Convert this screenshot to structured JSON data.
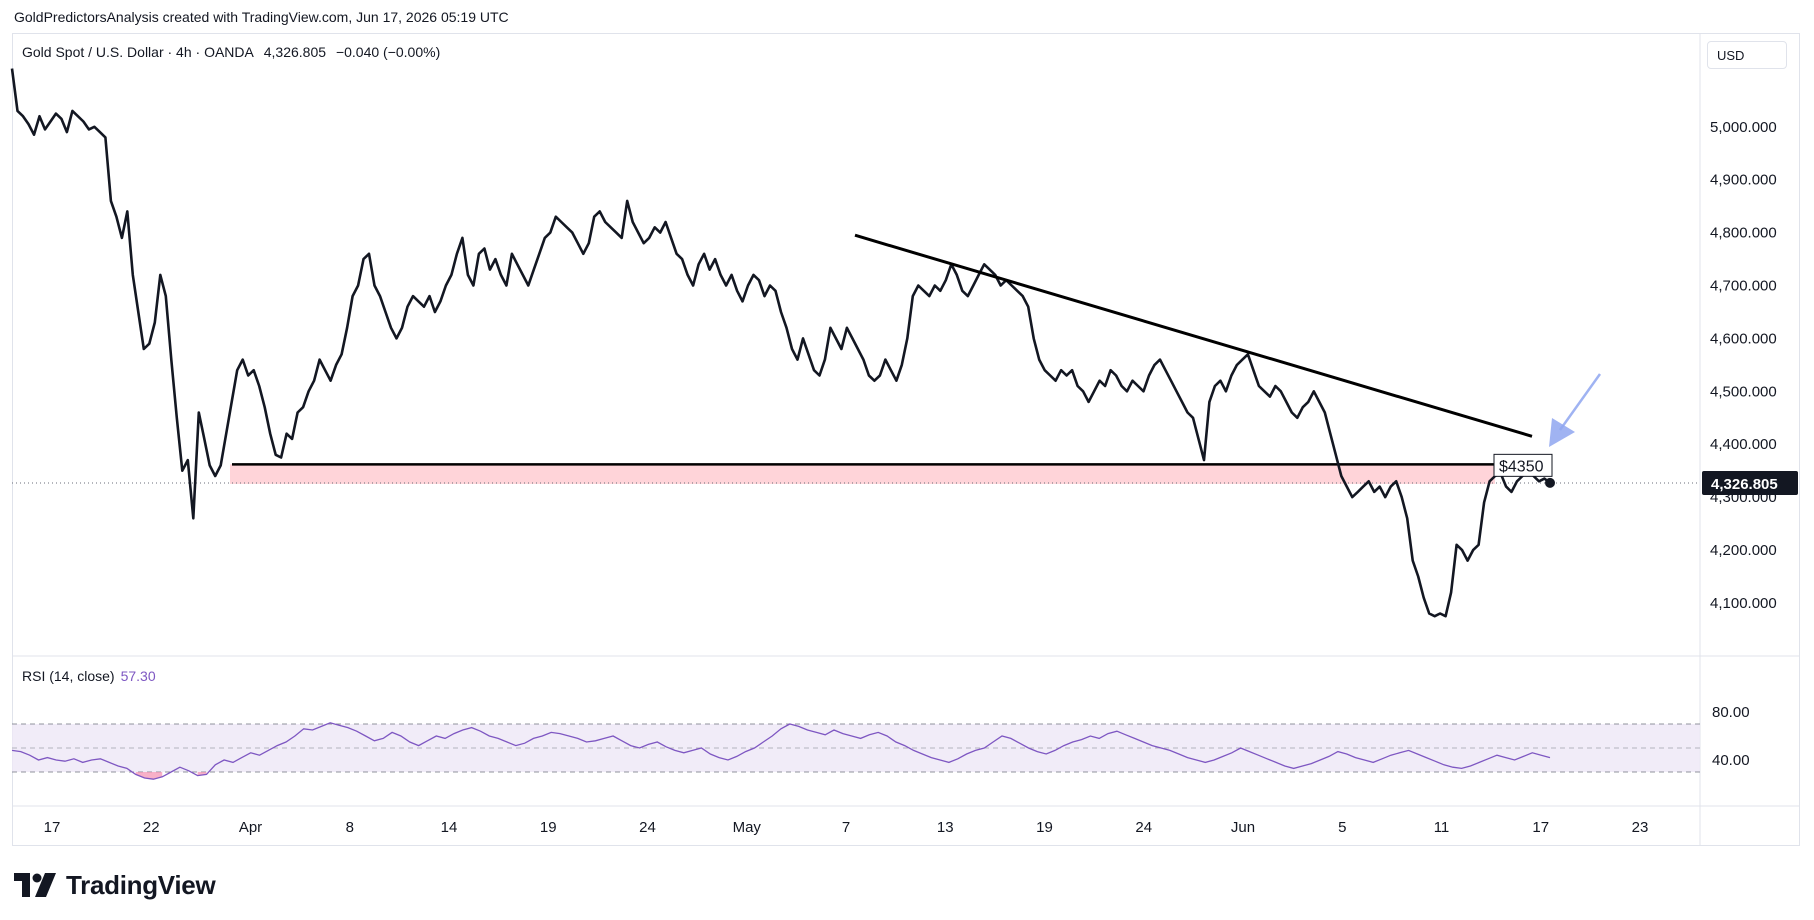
{
  "header": {
    "caption": "GoldPredictorsAnalysis created with TradingView.com, Jun 17, 2026 05:19 UTC"
  },
  "legend": {
    "symbol": "Gold Spot / U.S. Dollar · 4h · OANDA",
    "last": "4,326.805",
    "change": "−0.040 (−0.00%)"
  },
  "currency_label": "USD",
  "rsi": {
    "label": "RSI (14, close)",
    "value": "57.30"
  },
  "annotations": {
    "level_label": "$4350",
    "current_price_label": "4,326.805"
  },
  "brand": {
    "name": "TradingView"
  },
  "colors": {
    "price_line": "#131722",
    "trendline": "#000000",
    "support_zone": "#ffcdd2",
    "rsi_line": "#7e57c2",
    "rsi_band": "#ede7f6",
    "oversold_fill": "#f48fb1",
    "arrow": "#8fa6f0"
  },
  "chart_data": {
    "type": "line",
    "x_ticks": [
      "17",
      "22",
      "Apr",
      "8",
      "14",
      "19",
      "24",
      "May",
      "7",
      "13",
      "19",
      "24",
      "Jun",
      "5",
      "11",
      "17",
      "23"
    ],
    "y_ticks": [
      "5,000.000",
      "4,900.000",
      "4,800.000",
      "4,700.000",
      "4,600.000",
      "4,500.000",
      "4,400.000",
      "4,300.000",
      "4,200.000",
      "4,100.000"
    ],
    "ylim": [
      4030,
      5130
    ],
    "current_price": 4326.805,
    "series": [
      {
        "values": [
          5110,
          5030,
          5020,
          5005,
          4985,
          5020,
          4995,
          5010,
          5025,
          5015,
          4990,
          5030,
          5020,
          5010,
          4995,
          5000,
          4990,
          4980,
          4860,
          4830,
          4790,
          4840,
          4720,
          4650,
          4580,
          4590,
          4630,
          4720,
          4680,
          4560,
          4450,
          4350,
          4370,
          4260,
          4460,
          4410,
          4360,
          4340,
          4360,
          4420,
          4480,
          4540,
          4560,
          4530,
          4540,
          4510,
          4470,
          4420,
          4380,
          4375,
          4420,
          4410,
          4460,
          4470,
          4500,
          4520,
          4560,
          4540,
          4520,
          4550,
          4570,
          4620,
          4680,
          4700,
          4750,
          4760,
          4700,
          4680,
          4650,
          4620,
          4600,
          4620,
          4660,
          4680,
          4670,
          4660,
          4680,
          4650,
          4670,
          4700,
          4720,
          4760,
          4790,
          4720,
          4700,
          4760,
          4770,
          4730,
          4750,
          4720,
          4700,
          4760,
          4740,
          4720,
          4700,
          4730,
          4760,
          4790,
          4800,
          4830,
          4820,
          4810,
          4800,
          4780,
          4760,
          4780,
          4830,
          4840,
          4820,
          4810,
          4800,
          4790,
          4860,
          4820,
          4800,
          4780,
          4790,
          4810,
          4800,
          4820,
          4790,
          4760,
          4750,
          4720,
          4700,
          4740,
          4760,
          4730,
          4750,
          4720,
          4700,
          4720,
          4690,
          4670,
          4700,
          4720,
          4710,
          4680,
          4700,
          4690,
          4650,
          4620,
          4580,
          4560,
          4600,
          4570,
          4540,
          4530,
          4560,
          4620,
          4600,
          4580,
          4620,
          4600,
          4580,
          4560,
          4530,
          4520,
          4530,
          4560,
          4540,
          4520,
          4550,
          4600,
          4680,
          4700,
          4690,
          4680,
          4700,
          4690,
          4710,
          4740,
          4720,
          4690,
          4680,
          4700,
          4720,
          4740,
          4730,
          4720,
          4700,
          4710,
          4700,
          4690,
          4680,
          4660,
          4600,
          4560,
          4540,
          4530,
          4520,
          4540,
          4530,
          4540,
          4510,
          4500,
          4480,
          4500,
          4520,
          4510,
          4540,
          4530,
          4510,
          4500,
          4520,
          4510,
          4500,
          4530,
          4550,
          4560,
          4540,
          4520,
          4500,
          4480,
          4460,
          4450,
          4410,
          4370,
          4480,
          4510,
          4520,
          4500,
          4530,
          4550,
          4560,
          4570,
          4540,
          4510,
          4500,
          4490,
          4510,
          4500,
          4480,
          4460,
          4450,
          4470,
          4480,
          4500,
          4480,
          4460,
          4420,
          4380,
          4340,
          4320,
          4300,
          4310,
          4320,
          4330,
          4310,
          4320,
          4300,
          4320,
          4330,
          4300,
          4260,
          4180,
          4150,
          4110,
          4080,
          4075,
          4080,
          4075,
          4120,
          4210,
          4200,
          4180,
          4200,
          4210,
          4290,
          4330,
          4340,
          4345,
          4320,
          4310,
          4330,
          4340,
          4350,
          4340,
          4330,
          4335,
          4327
        ]
      }
    ],
    "annotation_level": 4350,
    "rsi": {
      "ylim": [
        15,
        90
      ],
      "y_ticks": [
        "80.00",
        "40.00"
      ],
      "upper_band": 70,
      "lower_band": 30,
      "midline": 50,
      "values": [
        48,
        47,
        44,
        40,
        42,
        40,
        39,
        41,
        38,
        40,
        41,
        38,
        35,
        33,
        28,
        25,
        24,
        26,
        30,
        34,
        31,
        27,
        28,
        36,
        40,
        38,
        42,
        46,
        44,
        48,
        52,
        55,
        60,
        66,
        65,
        68,
        71,
        69,
        67,
        64,
        60,
        56,
        58,
        63,
        60,
        55,
        52,
        56,
        60,
        58,
        62,
        65,
        67,
        64,
        60,
        58,
        55,
        52,
        54,
        58,
        60,
        63,
        62,
        60,
        58,
        55,
        56,
        58,
        60,
        56,
        52,
        50,
        53,
        55,
        51,
        48,
        46,
        48,
        50,
        45,
        42,
        40,
        43,
        47,
        50,
        55,
        60,
        66,
        70,
        68,
        65,
        63,
        61,
        65,
        62,
        60,
        58,
        61,
        63,
        60,
        55,
        52,
        48,
        45,
        42,
        40,
        38,
        41,
        45,
        48,
        50,
        55,
        60,
        58,
        54,
        50,
        47,
        45,
        48,
        52,
        55,
        57,
        60,
        58,
        62,
        64,
        61,
        58,
        55,
        52,
        50,
        48,
        45,
        42,
        40,
        38,
        40,
        43,
        46,
        50,
        47,
        44,
        41,
        38,
        35,
        33,
        35,
        37,
        40,
        43,
        47,
        45,
        42,
        40,
        38,
        41,
        44,
        46,
        48,
        45,
        42,
        39,
        36,
        34,
        33,
        35,
        38,
        41,
        44,
        42,
        40,
        43,
        46,
        44,
        42
      ]
    },
    "grid": false,
    "legend_position": "top-left"
  }
}
